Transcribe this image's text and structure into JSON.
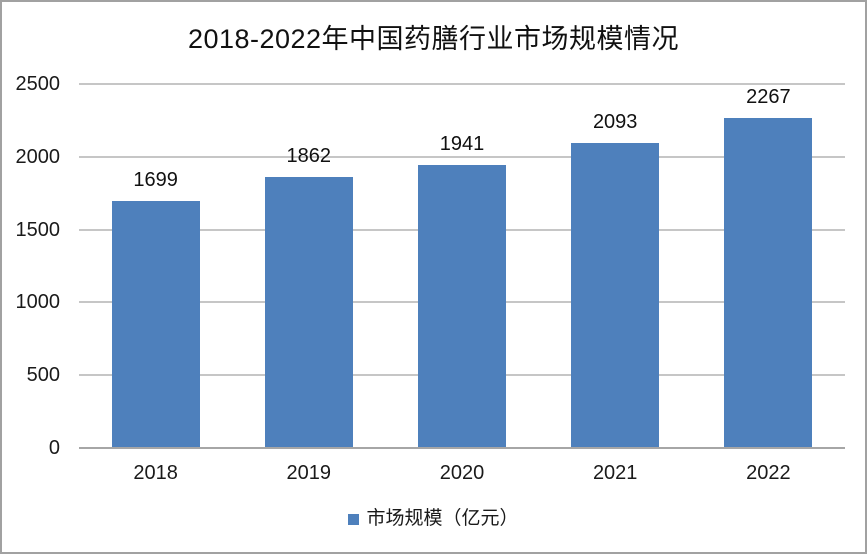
{
  "chart_data": {
    "type": "bar",
    "title": "2018-2022年中国药膳行业市场规模情况",
    "categories": [
      "2018",
      "2019",
      "2020",
      "2021",
      "2022"
    ],
    "series": [
      {
        "name": "市场规模（亿元）",
        "values": [
          1699,
          1862,
          1941,
          2093,
          2267
        ],
        "color": "#4E80BC"
      }
    ],
    "xlabel": "",
    "ylabel": "",
    "ylim": [
      0,
      2500
    ],
    "yticks": [
      0,
      500,
      1000,
      1500,
      2000,
      2500
    ],
    "grid": true,
    "data_labels": true,
    "legend_position": "bottom",
    "colors": {
      "bar": "#4E80BC",
      "gridline": "#c6c6c6",
      "axis_line": "#a6a6a6",
      "text": "#1a1a1a",
      "frame_border": "#a1a1a1",
      "background": "#ffffff"
    }
  }
}
